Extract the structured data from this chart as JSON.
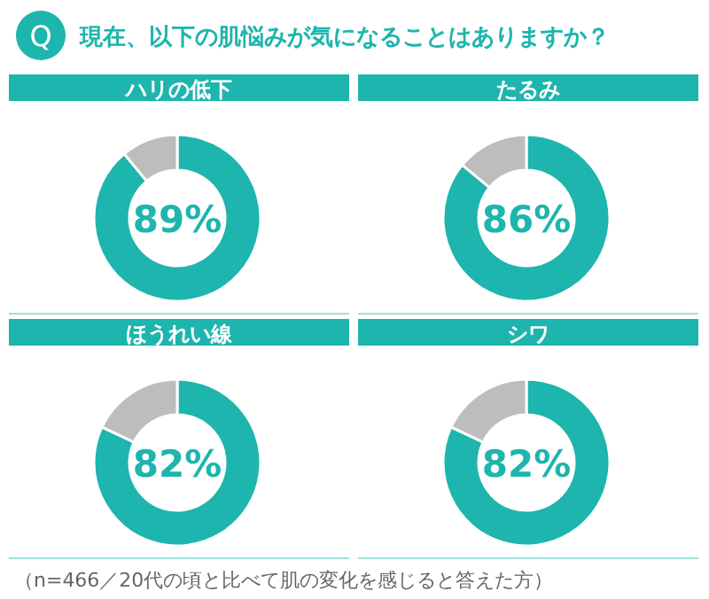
{
  "chart_data": [
    {
      "type": "other",
      "title": "現在、以下の肌悩みが気になることはありますか？",
      "annotations": [
        "Q",
        "（n=466／20代の頃と比べて肌の変化を感じると答えた方）"
      ]
    },
    {
      "type": "donut",
      "title": "ハリの低下",
      "categories": [
        null,
        null
      ],
      "values": [
        89,
        11
      ],
      "colors": [
        "#1db5ad",
        "#bdbdbd"
      ],
      "value_labels": [
        "89%",
        null
      ]
    },
    {
      "type": "donut",
      "title": "たるみ",
      "categories": [
        null,
        null
      ],
      "values": [
        86,
        14
      ],
      "colors": [
        "#1db5ad",
        "#bdbdbd"
      ],
      "value_labels": [
        "86%",
        null
      ]
    },
    {
      "type": "donut",
      "title": "ほうれい線",
      "categories": [
        null,
        null
      ],
      "values": [
        82,
        18
      ],
      "colors": [
        "#1db5ad",
        "#bdbdbd"
      ],
      "value_labels": [
        "82%",
        null
      ]
    },
    {
      "type": "donut",
      "title": "シワ",
      "categories": [
        null,
        null
      ],
      "values": [
        82,
        18
      ],
      "colors": [
        "#1db5ad",
        "#bdbdbd"
      ],
      "value_labels": [
        "82%",
        null
      ]
    }
  ]
}
